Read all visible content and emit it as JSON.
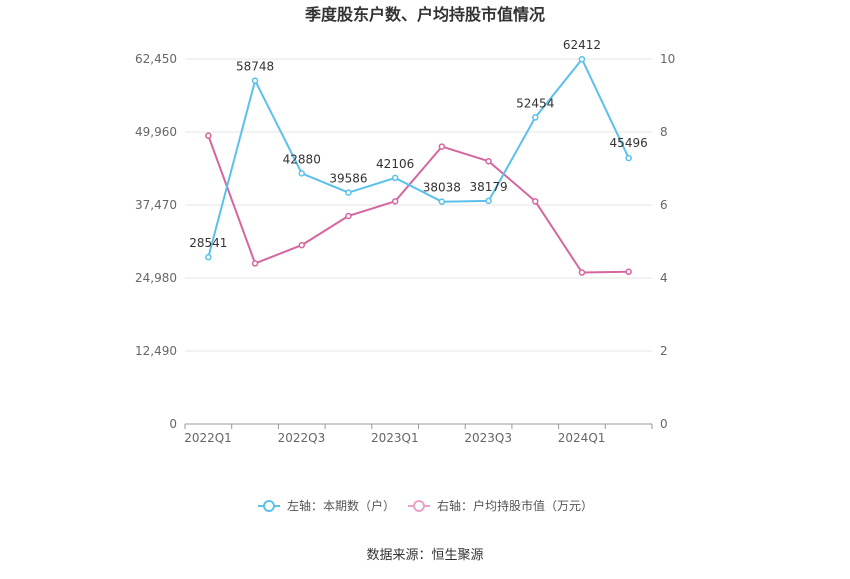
{
  "chart_data": {
    "type": "line",
    "title": "季度股东户数、户均持股市值情况",
    "x": [
      "2022Q1",
      "2022Q2",
      "2022Q3",
      "2022Q4",
      "2023Q1",
      "2023Q2",
      "2023Q3",
      "2023Q4",
      "2024Q1",
      "2024Q2"
    ],
    "x_tick_labels": [
      "2022Q1",
      "2022Q3",
      "2023Q1",
      "2023Q3",
      "2024Q1"
    ],
    "left_axis": {
      "min": 0,
      "max": 62450,
      "ticks": [
        "0",
        "12,490",
        "24,980",
        "37,470",
        "49,960",
        "62,450"
      ]
    },
    "right_axis": {
      "min": 0,
      "max": 10,
      "ticks": [
        "0",
        "2",
        "4",
        "6",
        "8",
        "10"
      ]
    },
    "series": [
      {
        "name": "左轴：本期数（户）",
        "axis": "left",
        "color": "#5bc0eb",
        "values": [
          28541,
          58748,
          42880,
          39586,
          42106,
          38038,
          38179,
          52454,
          62412,
          45496
        ],
        "data_labels": [
          "28541",
          "58748",
          "42880",
          "39586",
          "42106",
          "38038",
          "38179",
          "52454",
          "62412",
          "45496"
        ]
      },
      {
        "name": "右轴：户均持股市值（万元）",
        "axis": "right",
        "color": "#d4679f",
        "values": [
          7.9,
          4.4,
          4.9,
          5.7,
          6.1,
          7.6,
          7.2,
          6.1,
          4.15,
          4.17
        ]
      }
    ],
    "grid": true,
    "legend_position": "bottom"
  },
  "source_text": "数据来源：恒生聚源"
}
